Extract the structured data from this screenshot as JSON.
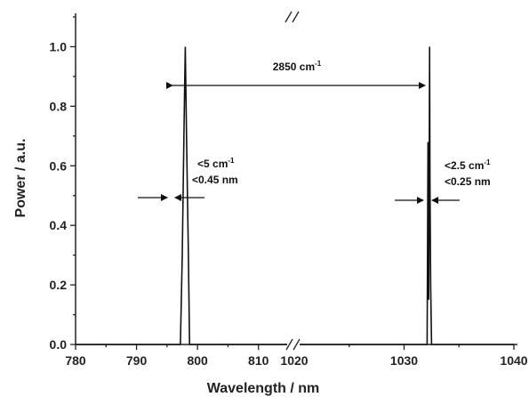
{
  "chart_data": {
    "type": "line",
    "xlabel": "Wavelength / nm",
    "ylabel": "Power / a.u.",
    "x_axis_break": {
      "from": 815,
      "to": 1020
    },
    "xlim_left": [
      780,
      815
    ],
    "xlim_right": [
      1020,
      1040
    ],
    "xticks": [
      780,
      790,
      800,
      810,
      1020,
      1030,
      1040
    ],
    "ylim": [
      0,
      1.1
    ],
    "yticks": [
      0.0,
      0.2,
      0.4,
      0.6,
      0.8,
      1.0
    ],
    "ytick_labels": [
      "0.0",
      "0.2",
      "0.4",
      "0.6",
      "0.8",
      "1.0"
    ],
    "series": [
      {
        "x": [
          780,
          797.2,
          797.5,
          797.8,
          798.0,
          798.2,
          798.5,
          798.7,
          815
        ],
        "y": [
          0,
          0,
          0.3,
          0.75,
          1.0,
          0.7,
          0.3,
          0,
          0
        ]
      },
      {
        "x": [
          1020,
          1032.1,
          1032.18,
          1032.24,
          1032.28,
          1032.32,
          1032.36,
          1032.42,
          1032.5,
          1040
        ],
        "y": [
          0,
          0,
          0.68,
          0.15,
          0.5,
          1.0,
          0.55,
          0.2,
          0,
          0
        ]
      }
    ],
    "annotations": {
      "separation": {
        "value": "2850 cm",
        "sup": "-1"
      },
      "left_linewidth": {
        "line1": "<5 cm",
        "line1_sup": "-1",
        "line2": "<0.45 nm"
      },
      "right_linewidth": {
        "line1": "<2.5 cm",
        "line1_sup": "-1",
        "line2": "<0.25 nm"
      }
    }
  }
}
